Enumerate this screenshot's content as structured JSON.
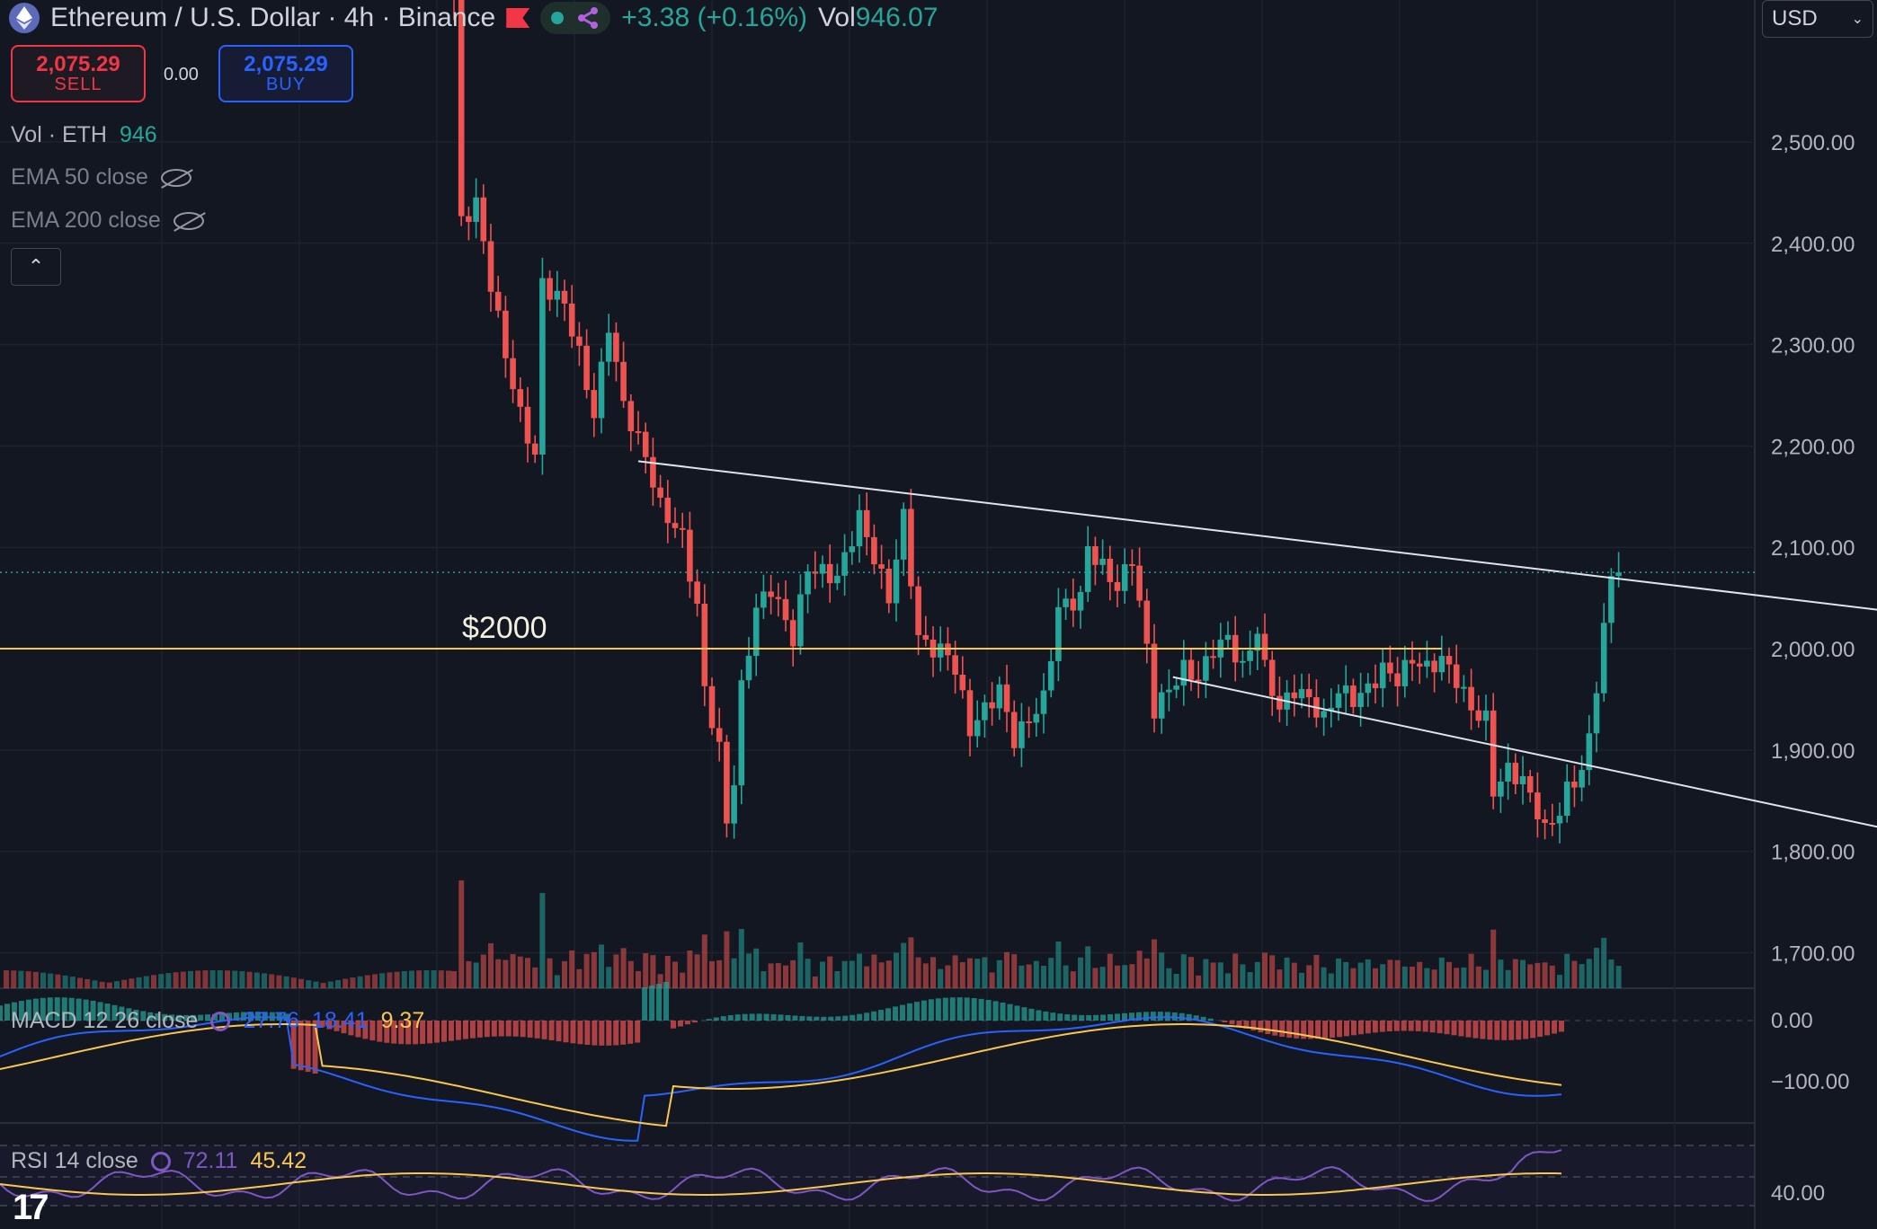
{
  "header": {
    "title": "Ethereum / U.S. Dollar · 4h · Binance",
    "change": "+3.38 (+0.16%)",
    "vol_label": "Vol",
    "vol_value": "946.07"
  },
  "trade": {
    "sell_price": "2,075.29",
    "sell_label": "SELL",
    "spread": "0.00",
    "buy_price": "2,075.29",
    "buy_label": "BUY"
  },
  "indicators": {
    "vol_label": "Vol · ETH",
    "vol_value": "946",
    "ema50": "EMA 50 close",
    "ema200": "EMA 200 close"
  },
  "currency": "USD",
  "macd": {
    "label": "MACD 12 26 close",
    "v1": "27.76",
    "v2": "18.41",
    "v3": "9.37"
  },
  "rsi": {
    "label": "RSI 14 close",
    "v1": "72.11",
    "v2": "45.42"
  },
  "logo": "17",
  "colors": {
    "up": "#26a69a",
    "down": "#ef5350",
    "level": "#f9c74f",
    "macd": "#2962ff",
    "signal": "#f9c74f",
    "rsi": "#7e57c2"
  },
  "chart_data": {
    "type": "candlestick",
    "price_axis": {
      "ticks": [
        2500,
        2400,
        2300,
        2200,
        2100,
        2000,
        1900,
        1800,
        1700
      ],
      "range": [
        1665,
        2640
      ]
    },
    "last_price": 2075.29,
    "annotation": {
      "text": "$2000",
      "price": 2000
    },
    "channel": {
      "upper": [
        [
          0,
          2185
        ],
        [
          158,
          2018
        ]
      ],
      "lower": [
        [
          39,
          1972
        ],
        [
          154,
          1798
        ]
      ]
    },
    "anchors": [
      [
        0,
        2640
      ],
      [
        1,
        2420
      ],
      [
        3,
        2440
      ],
      [
        5,
        2360
      ],
      [
        7,
        2290
      ],
      [
        9,
        2230
      ],
      [
        11,
        2190
      ],
      [
        12,
        2360
      ],
      [
        15,
        2340
      ],
      [
        17,
        2290
      ],
      [
        19,
        2230
      ],
      [
        21,
        2320
      ],
      [
        23,
        2240
      ],
      [
        26,
        2190
      ],
      [
        28,
        2140
      ],
      [
        31,
        2110
      ],
      [
        33,
        2040
      ],
      [
        34,
        1960
      ],
      [
        36,
        1900
      ],
      [
        37,
        1830
      ],
      [
        38,
        1870
      ],
      [
        39,
        1960
      ],
      [
        41,
        2040
      ],
      [
        43,
        2060
      ],
      [
        46,
        2010
      ],
      [
        48,
        2080
      ],
      [
        52,
        2070
      ],
      [
        55,
        2130
      ],
      [
        57,
        2090
      ],
      [
        59,
        2050
      ],
      [
        61,
        2130
      ],
      [
        63,
        2010
      ],
      [
        65,
        2000
      ],
      [
        67,
        1995
      ],
      [
        68,
        1980
      ],
      [
        70,
        1920
      ],
      [
        72,
        1940
      ],
      [
        74,
        1960
      ],
      [
        76,
        1910
      ],
      [
        78,
        1930
      ],
      [
        80,
        1950
      ],
      [
        82,
        2040
      ],
      [
        85,
        2050
      ],
      [
        86,
        2100
      ],
      [
        88,
        2080
      ],
      [
        90,
        2060
      ],
      [
        92,
        2090
      ],
      [
        94,
        2000
      ],
      [
        95,
        1940
      ],
      [
        97,
        1960
      ],
      [
        99,
        1980
      ],
      [
        101,
        1970
      ],
      [
        103,
        2000
      ],
      [
        105,
        2010
      ],
      [
        107,
        1980
      ],
      [
        109,
        2020
      ],
      [
        110,
        1980
      ],
      [
        112,
        1940
      ],
      [
        114,
        1960
      ],
      [
        116,
        1950
      ],
      [
        118,
        1930
      ],
      [
        120,
        1960
      ],
      [
        122,
        1950
      ],
      [
        124,
        1960
      ],
      [
        126,
        1980
      ],
      [
        128,
        1970
      ],
      [
        130,
        1990
      ],
      [
        132,
        1980
      ],
      [
        134,
        1990
      ],
      [
        136,
        1970
      ],
      [
        138,
        1940
      ],
      [
        140,
        1930
      ],
      [
        141,
        1860
      ],
      [
        143,
        1880
      ],
      [
        145,
        1870
      ],
      [
        147,
        1840
      ],
      [
        148,
        1820
      ],
      [
        150,
        1840
      ],
      [
        151,
        1860
      ],
      [
        153,
        1880
      ],
      [
        154,
        1910
      ],
      [
        156,
        2020
      ],
      [
        157,
        2070
      ],
      [
        158,
        2076
      ]
    ],
    "macd_axis": {
      "ticks": [
        0,
        -100
      ]
    },
    "rsi_axis": {
      "ticks": [
        40
      ]
    }
  }
}
